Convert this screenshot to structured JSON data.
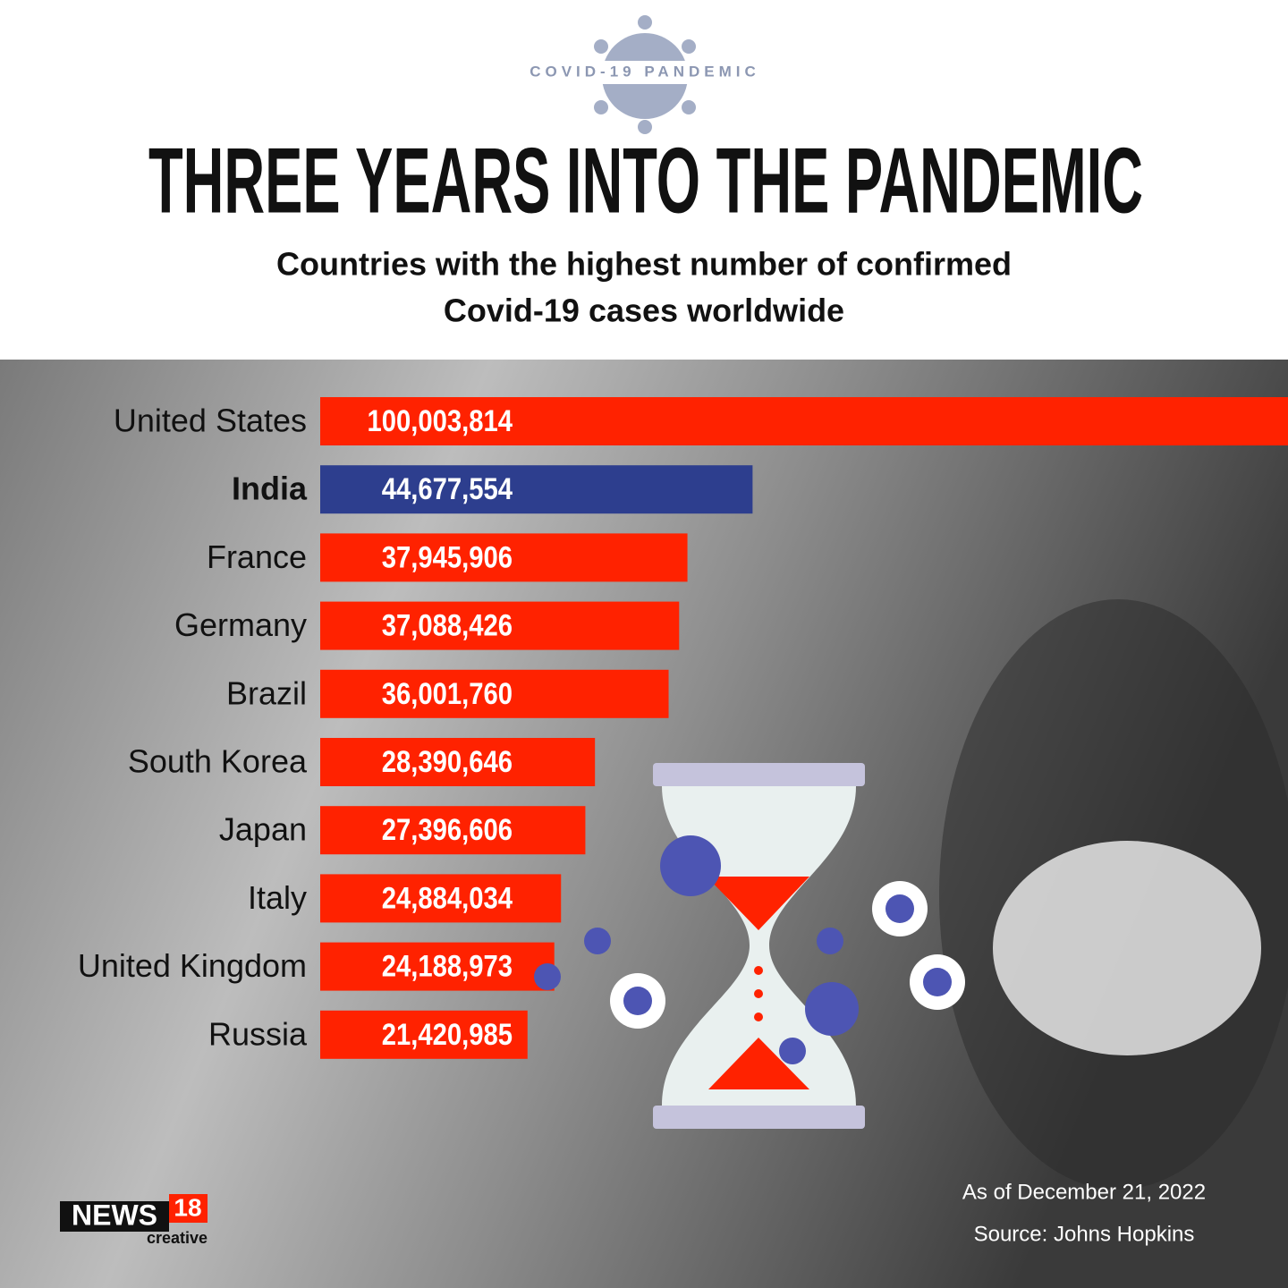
{
  "chart_data": {
    "type": "barh",
    "kicker": "COVID-19 PANDEMIC",
    "title": "THREE YEARS INTO THE PANDEMIC",
    "subtitle": [
      "Countries with the highest number of confirmed",
      "Covid-19 cases worldwide"
    ],
    "categories": [
      "United States",
      "India",
      "France",
      "Germany",
      "Brazil",
      "South Korea",
      "Japan",
      "Italy",
      "United Kingdom",
      "Russia"
    ],
    "values": [
      100003814,
      44677554,
      37945906,
      37088426,
      36001760,
      28390646,
      27396606,
      24884034,
      24188973,
      21420985
    ],
    "value_labels": [
      "100,003,814",
      "44,677,554",
      "37,945,906",
      "37,088,426",
      "36,001,760",
      "28,390,646",
      "27,396,606",
      "24,884,034",
      "24,188,973",
      "21,420,985"
    ],
    "colors": [
      "#ff2200",
      "#2d3e8e",
      "#ff2200",
      "#ff2200",
      "#ff2200",
      "#ff2200",
      "#ff2200",
      "#ff2200",
      "#ff2200",
      "#ff2200"
    ],
    "note": "As of December 21, 2022",
    "source": "Source: Johns Hopkins"
  },
  "brand": {
    "name": "NEWS",
    "number": "18",
    "tagline": "creative"
  }
}
